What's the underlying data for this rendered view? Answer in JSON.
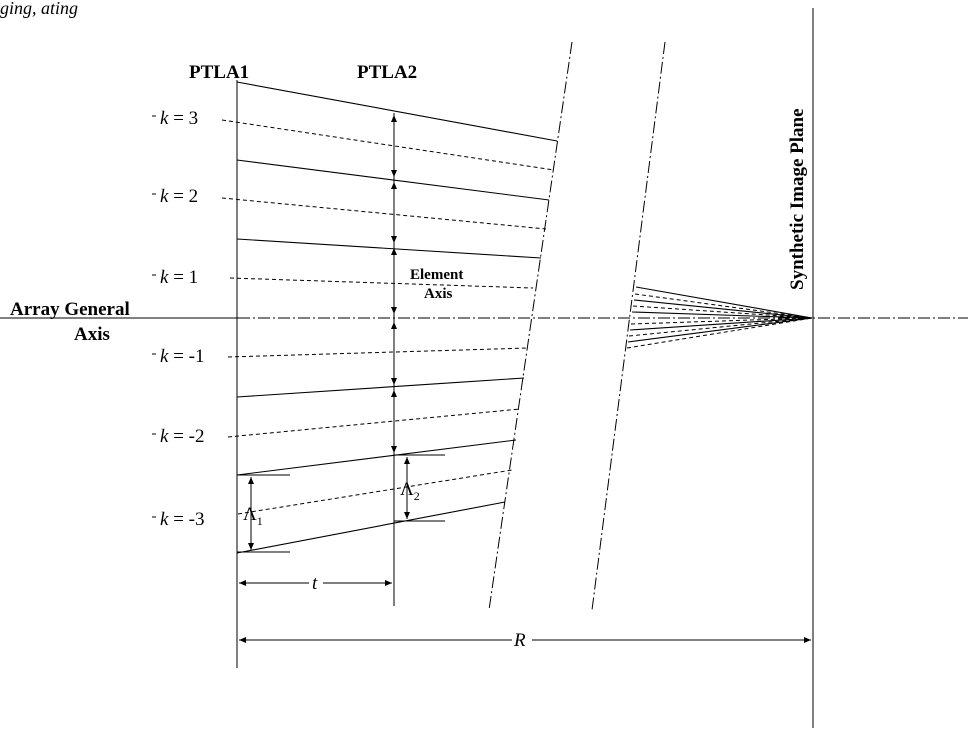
{
  "header_fragment": "ging, ating",
  "labels": {
    "ptla1": "PTLA1",
    "ptla2": "PTLA2",
    "synthetic_image_plane": "Synthetic Image Plane",
    "array_general_axis_line1": "Array General",
    "array_general_axis_line2": "Axis",
    "element_axis_line1": "Element",
    "element_axis_line2": "Axis"
  },
  "k_labels": [
    {
      "k": "3"
    },
    {
      "k": "2"
    },
    {
      "k": "1"
    },
    {
      "k": "-1"
    },
    {
      "k": "-2"
    },
    {
      "k": "-3"
    }
  ],
  "k_symbol": "k",
  "equals": "=",
  "dimensions": {
    "lambda_symbol": "Λ",
    "lambda1_sub": "1",
    "lambda2_sub": "2",
    "t": "t",
    "R": "R"
  }
}
